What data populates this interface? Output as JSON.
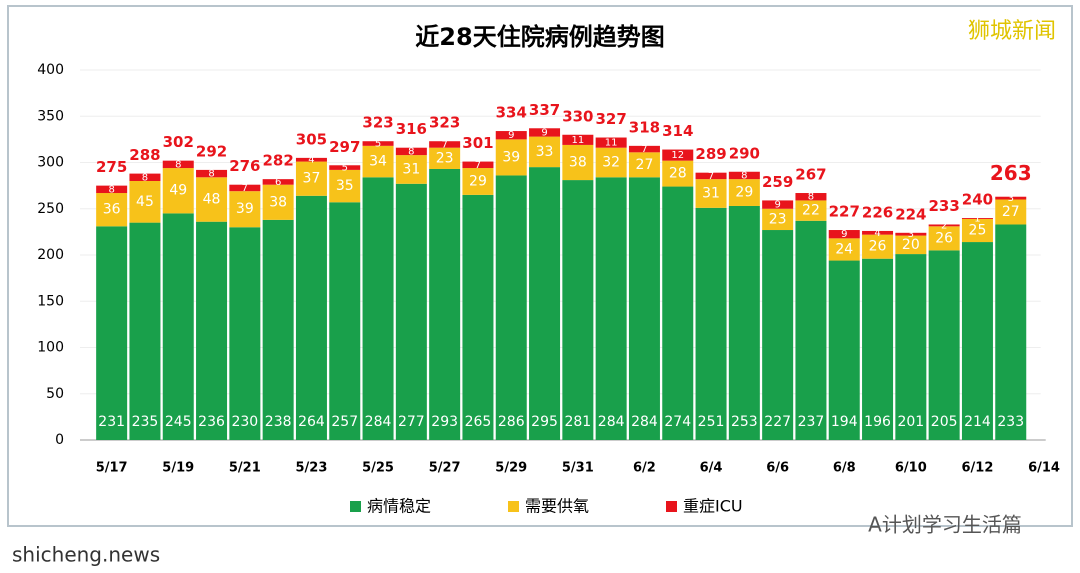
{
  "chart_data": {
    "type": "bar",
    "stacked": true,
    "title": "近28天住院病例趋势图",
    "categories": [
      "5/17",
      null,
      "5/19",
      null,
      "5/21",
      null,
      "5/23",
      null,
      "5/25",
      null,
      "5/27",
      null,
      "5/29",
      null,
      "5/31",
      null,
      "6/2",
      null,
      "6/4",
      null,
      "6/6",
      null,
      "6/8",
      null,
      "6/10",
      null,
      "6/12",
      null,
      "6/14"
    ],
    "series": [
      {
        "name": "病情稳定",
        "color": "#19a04b",
        "values": [
          231,
          235,
          245,
          236,
          230,
          238,
          264,
          257,
          284,
          277,
          293,
          265,
          286,
          295,
          281,
          284,
          284,
          274,
          251,
          253,
          227,
          237,
          194,
          196,
          201,
          205,
          214,
          233,
          null
        ]
      },
      {
        "name": "需要供氧",
        "color": "#f7c21a",
        "values": [
          36,
          45,
          49,
          48,
          39,
          38,
          37,
          35,
          34,
          31,
          23,
          29,
          39,
          33,
          38,
          32,
          27,
          28,
          31,
          29,
          23,
          22,
          24,
          26,
          20,
          26,
          25,
          27,
          null
        ]
      },
      {
        "name": "重症ICU",
        "color": "#e8141c",
        "values": [
          8,
          8,
          8,
          8,
          7,
          6,
          4,
          5,
          5,
          8,
          7,
          7,
          9,
          9,
          11,
          11,
          7,
          12,
          7,
          8,
          9,
          8,
          9,
          4,
          3,
          2,
          1,
          3,
          null
        ]
      }
    ],
    "totals": [
      275,
      288,
      302,
      292,
      276,
      282,
      305,
      297,
      323,
      316,
      323,
      301,
      334,
      337,
      330,
      327,
      318,
      314,
      289,
      290,
      259,
      267,
      227,
      226,
      224,
      233,
      240,
      263,
      null
    ],
    "ylim": [
      0,
      400
    ],
    "yticks": [
      0,
      50,
      100,
      150,
      200,
      250,
      300,
      350,
      400
    ],
    "grid": true,
    "legend": "bottom"
  },
  "watermarks": {
    "top_right": "狮城新闻",
    "bottom_right": "A计划学习生活篇",
    "bottom_left": "shicheng.news"
  }
}
